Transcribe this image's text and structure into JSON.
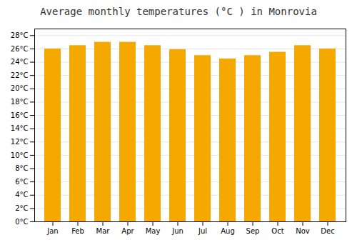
{
  "chart_data": {
    "type": "bar",
    "title": "Average monthly temperatures (°C ) in Monrovia",
    "categories": [
      "Jan",
      "Feb",
      "Mar",
      "Apr",
      "May",
      "Jun",
      "Jul",
      "Aug",
      "Sep",
      "Oct",
      "Nov",
      "Dec"
    ],
    "values": [
      26.0,
      26.5,
      27.0,
      27.0,
      26.5,
      25.9,
      25.0,
      24.5,
      25.0,
      25.5,
      26.5,
      26.0
    ],
    "color": "#F5A800",
    "ylim": [
      0,
      29
    ],
    "yticks": [
      {
        "value": 0,
        "label": "0°C"
      },
      {
        "value": 2,
        "label": "2°C"
      },
      {
        "value": 4,
        "label": "4°C"
      },
      {
        "value": 6,
        "label": "6°C"
      },
      {
        "value": 8,
        "label": "8°C"
      },
      {
        "value": 10,
        "label": "10°C"
      },
      {
        "value": 12,
        "label": "12°C"
      },
      {
        "value": 14,
        "label": "14°C"
      },
      {
        "value": 16,
        "label": "16°C"
      },
      {
        "value": 18,
        "label": "18°C"
      },
      {
        "value": 20,
        "label": "20°C"
      },
      {
        "value": 22,
        "label": "22°C"
      },
      {
        "value": 24,
        "label": "24°C"
      },
      {
        "value": 26,
        "label": "26°C"
      },
      {
        "value": 28,
        "label": "28°C"
      }
    ],
    "grid": true
  }
}
